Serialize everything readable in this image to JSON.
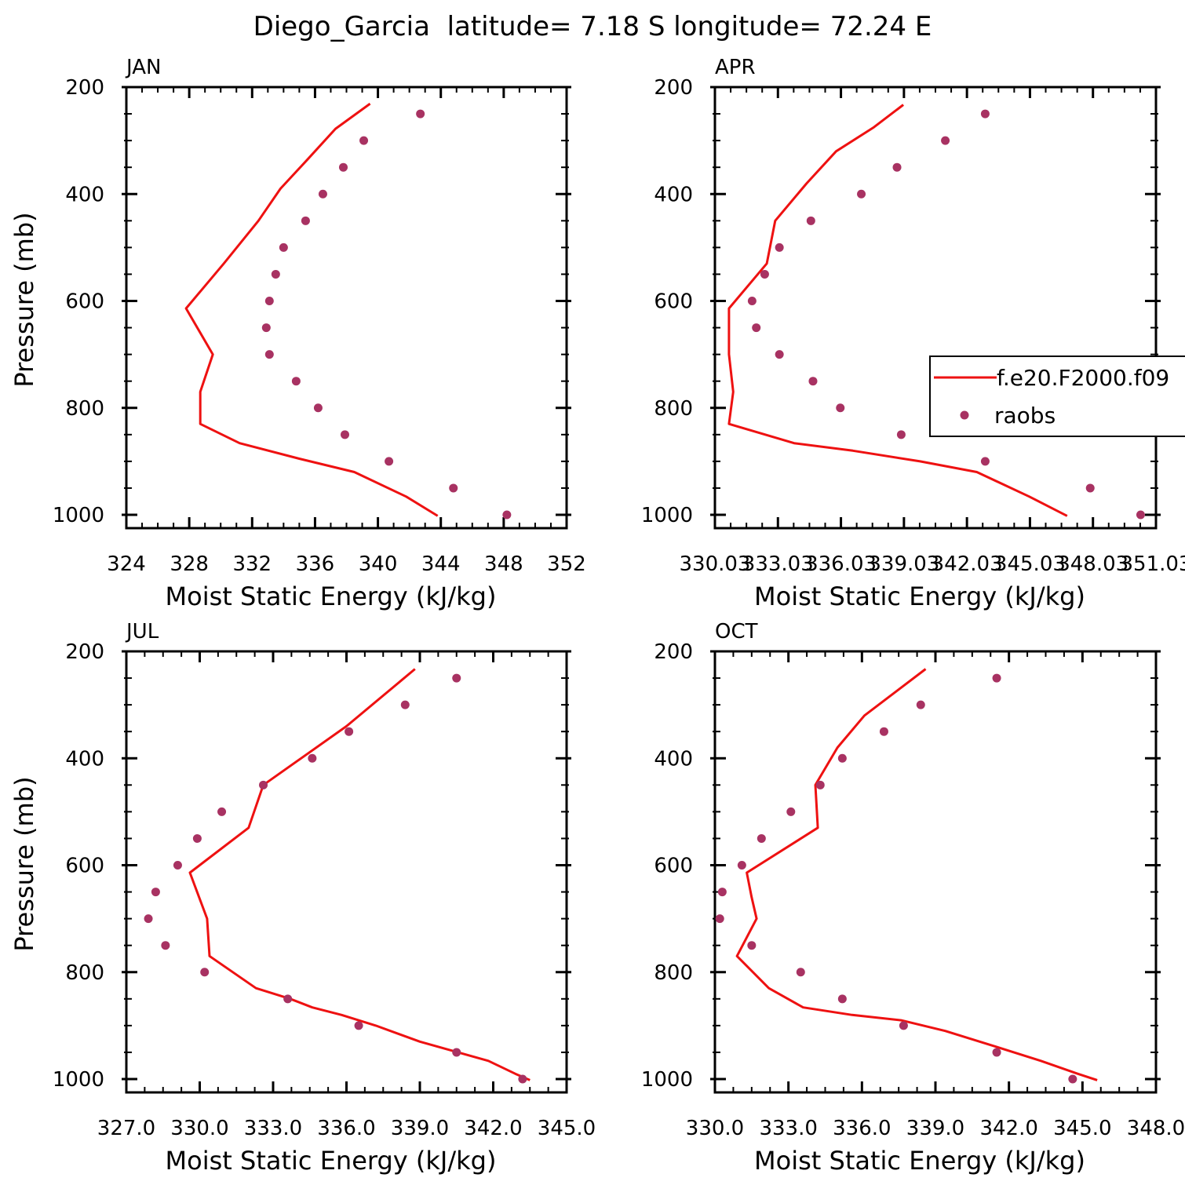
{
  "title": "Diego_Garcia  latitude= 7.18 S longitude= 72.24 E",
  "colors": {
    "model": "#ee1111",
    "obs": "#a83262",
    "axis": "#000000"
  },
  "legend": {
    "model_label": "f.e20.F2000.f09",
    "obs_label": "raobs"
  },
  "chart_data": [
    {
      "type": "line",
      "panel": "JAN",
      "xlabel": "Moist Static Energy (kJ/kg)",
      "ylabel": "Pressure (mb)",
      "xlim": [
        324,
        352
      ],
      "ylim": [
        1000,
        200
      ],
      "y_inverted": true,
      "xticks": [
        "324",
        "328",
        "332",
        "336",
        "340",
        "344",
        "348",
        "352"
      ],
      "xtick_values": [
        324,
        328,
        332,
        336,
        340,
        344,
        348,
        352
      ],
      "yticks": [
        "200",
        "400",
        "600",
        "800",
        "1000"
      ],
      "ytick_values": [
        200,
        400,
        600,
        800,
        1000
      ],
      "series": [
        {
          "name": "f.e20.F2000.f09",
          "kind": "line",
          "x": [
            343.8,
            341.8,
            338.5,
            335.0,
            331.2,
            328.7,
            328.7,
            329.5,
            327.8,
            330.2,
            332.4,
            333.8,
            335.5,
            337.3,
            339.5
          ],
          "y": [
            1002,
            966,
            920,
            895,
            866,
            830,
            770,
            700,
            614,
            530,
            450,
            390,
            336,
            278,
            231
          ]
        },
        {
          "name": "raobs",
          "kind": "scatter",
          "x": [
            348.2,
            344.8,
            340.7,
            337.9,
            336.2,
            334.8,
            333.1,
            332.9,
            333.1,
            333.5,
            334.0,
            335.4,
            336.5,
            337.8,
            339.1,
            342.7
          ],
          "y": [
            1000,
            950,
            900,
            850,
            800,
            750,
            700,
            650,
            600,
            550,
            500,
            450,
            400,
            350,
            300,
            250
          ]
        }
      ]
    },
    {
      "type": "line",
      "panel": "APR",
      "xlabel": "Moist Static Energy (kJ/kg)",
      "ylabel": "",
      "xlim": [
        330.03,
        351.03
      ],
      "ylim": [
        1000,
        200
      ],
      "y_inverted": true,
      "xticks": [
        "330.03",
        "333.03",
        "336.03",
        "339.03",
        "342.03",
        "345.03",
        "348.03",
        "351.03"
      ],
      "xtick_values": [
        330.03,
        333.03,
        336.03,
        339.03,
        342.03,
        345.03,
        348.03,
        351.03
      ],
      "yticks": [
        "200",
        "400",
        "600",
        "800",
        "1000"
      ],
      "ytick_values": [
        200,
        400,
        600,
        800,
        1000
      ],
      "series": [
        {
          "name": "f.e20.F2000.f09",
          "kind": "line",
          "x": [
            346.8,
            345.0,
            342.5,
            339.8,
            336.6,
            333.8,
            330.7,
            330.9,
            330.7,
            330.7,
            332.5,
            332.9,
            334.4,
            335.8,
            337.6,
            339.0
          ],
          "y": [
            1002,
            966,
            920,
            900,
            880,
            866,
            830,
            770,
            700,
            614,
            530,
            450,
            380,
            320,
            275,
            233
          ]
        },
        {
          "name": "raobs",
          "kind": "scatter",
          "x": [
            350.3,
            347.9,
            342.9,
            338.9,
            336.0,
            334.7,
            333.1,
            332.0,
            331.8,
            332.4,
            333.1,
            334.6,
            337.0,
            338.7,
            341.0,
            342.9
          ],
          "y": [
            1000,
            950,
            900,
            850,
            800,
            750,
            700,
            650,
            600,
            550,
            500,
            450,
            400,
            350,
            300,
            250
          ]
        }
      ]
    },
    {
      "type": "line",
      "panel": "JUL",
      "xlabel": "Moist Static Energy (kJ/kg)",
      "ylabel": "Pressure (mb)",
      "xlim": [
        327,
        345
      ],
      "ylim": [
        1000,
        200
      ],
      "y_inverted": true,
      "xticks": [
        "327.0",
        "330.0",
        "333.0",
        "336.0",
        "339.0",
        "342.0",
        "345.0"
      ],
      "xtick_values": [
        327,
        330,
        333,
        336,
        339,
        342,
        345
      ],
      "yticks": [
        "200",
        "400",
        "600",
        "800",
        "1000"
      ],
      "ytick_values": [
        200,
        400,
        600,
        800,
        1000
      ],
      "series": [
        {
          "name": "f.e20.F2000.f09",
          "kind": "line",
          "x": [
            343.5,
            342.9,
            341.8,
            339.0,
            337.2,
            335.8,
            334.6,
            333.7,
            332.3,
            330.4,
            330.3,
            329.6,
            332.0,
            332.6,
            336.0,
            338.8
          ],
          "y": [
            1002,
            990,
            966,
            930,
            900,
            880,
            866,
            850,
            830,
            770,
            700,
            614,
            530,
            450,
            340,
            233
          ]
        },
        {
          "name": "raobs",
          "kind": "scatter",
          "x": [
            343.2,
            340.5,
            336.5,
            333.6,
            330.2,
            328.6,
            327.9,
            328.2,
            329.1,
            329.9,
            330.9,
            332.6,
            334.6,
            336.1,
            338.4,
            340.5
          ],
          "y": [
            1000,
            950,
            900,
            850,
            800,
            750,
            700,
            650,
            600,
            550,
            500,
            450,
            400,
            350,
            300,
            250
          ]
        }
      ]
    },
    {
      "type": "line",
      "panel": "OCT",
      "xlabel": "Moist Static Energy (kJ/kg)",
      "ylabel": "",
      "xlim": [
        330,
        348
      ],
      "ylim": [
        1000,
        200
      ],
      "y_inverted": true,
      "xticks": [
        "330.0",
        "333.0",
        "336.0",
        "339.0",
        "342.0",
        "345.0",
        "348.0"
      ],
      "xtick_values": [
        330,
        333,
        336,
        339,
        342,
        345,
        348
      ],
      "yticks": [
        "200",
        "400",
        "600",
        "800",
        "1000"
      ],
      "ytick_values": [
        200,
        400,
        600,
        800,
        1000
      ],
      "series": [
        {
          "name": "f.e20.F2000.f09",
          "kind": "line",
          "x": [
            345.6,
            344.8,
            343.3,
            341.5,
            339.4,
            337.6,
            335.6,
            333.6,
            332.2,
            330.9,
            331.7,
            331.5,
            331.3,
            334.2,
            334.1,
            335.0,
            336.1,
            338.6
          ],
          "y": [
            1002,
            990,
            966,
            940,
            910,
            890,
            880,
            866,
            830,
            770,
            700,
            660,
            614,
            530,
            450,
            380,
            320,
            233
          ]
        },
        {
          "name": "raobs",
          "kind": "scatter",
          "x": [
            344.6,
            341.5,
            337.7,
            335.2,
            333.5,
            331.5,
            330.2,
            330.3,
            331.1,
            331.9,
            333.1,
            334.3,
            335.2,
            336.9,
            338.4,
            341.5
          ],
          "y": [
            1000,
            950,
            900,
            850,
            800,
            750,
            700,
            650,
            600,
            550,
            500,
            450,
            400,
            350,
            300,
            250
          ]
        }
      ]
    }
  ]
}
